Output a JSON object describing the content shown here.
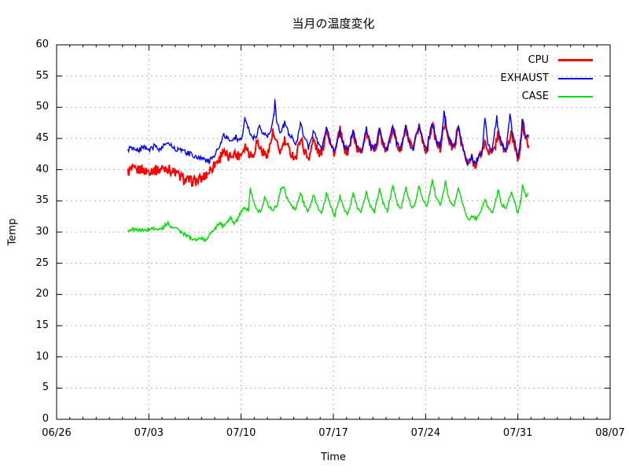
{
  "chart_data": {
    "type": "line",
    "title": "当月の温度変化",
    "xlabel": "Time",
    "ylabel": "Temp",
    "background": "#ffffff",
    "grid": {
      "show": true,
      "color": "#b0b0b0",
      "style": "dotted"
    },
    "legend": {
      "position": "top-right",
      "entries": [
        "CPU",
        "EXHAUST",
        "CASE"
      ]
    },
    "x_axis": {
      "range_days": [
        0,
        42
      ],
      "tick_days": [
        0,
        7,
        14,
        21,
        28,
        35,
        42
      ],
      "tick_labels": [
        "06/26",
        "07/03",
        "07/10",
        "07/17",
        "07/24",
        "07/31",
        "08/07"
      ],
      "minor_tick_step_days": 1
    },
    "y_axis": {
      "range": [
        0,
        60
      ],
      "ticks": [
        0,
        5,
        10,
        15,
        20,
        25,
        30,
        35,
        40,
        45,
        50,
        55,
        60
      ]
    },
    "series": [
      {
        "name": "CPU",
        "color": "#ff0000",
        "noise": 0.85,
        "samples_per_day": 16,
        "points": [
          [
            5.4,
            39.6
          ],
          [
            5.7,
            40.0
          ],
          [
            6.0,
            39.8
          ],
          [
            6.4,
            40.1
          ],
          [
            6.8,
            39.7
          ],
          [
            7.2,
            40.0
          ],
          [
            7.6,
            39.9
          ],
          [
            8.0,
            40.2
          ],
          [
            8.3,
            40.4
          ],
          [
            8.6,
            39.9
          ],
          [
            9.0,
            39.5
          ],
          [
            9.4,
            38.8
          ],
          [
            9.8,
            38.3
          ],
          [
            10.2,
            38.2
          ],
          [
            10.6,
            38.2
          ],
          [
            11.0,
            38.5
          ],
          [
            11.4,
            39.3
          ],
          [
            11.8,
            40.3
          ],
          [
            12.1,
            41.2
          ],
          [
            12.4,
            41.8
          ],
          [
            12.6,
            43.3
          ],
          [
            12.8,
            42.2
          ],
          [
            13.1,
            41.9
          ],
          [
            13.4,
            42.8
          ],
          [
            13.7,
            42.2
          ],
          [
            14.0,
            42.6
          ],
          [
            14.3,
            43.9
          ],
          [
            14.6,
            42.8
          ],
          [
            14.9,
            42.2
          ],
          [
            15.2,
            44.6
          ],
          [
            15.5,
            43.2
          ],
          [
            15.8,
            42.4
          ],
          [
            16.1,
            43.0
          ],
          [
            16.4,
            45.9
          ],
          [
            16.7,
            44.0
          ],
          [
            17.0,
            42.8
          ],
          [
            17.3,
            44.6
          ],
          [
            17.6,
            43.2
          ],
          [
            17.9,
            42.4
          ],
          [
            18.2,
            42.0
          ],
          [
            18.5,
            45.3
          ],
          [
            18.8,
            43.0
          ],
          [
            19.1,
            41.8
          ],
          [
            19.5,
            44.8
          ],
          [
            19.8,
            43.0
          ],
          [
            20.1,
            42.4
          ],
          [
            20.5,
            46.8
          ],
          [
            20.8,
            44.0
          ],
          [
            21.1,
            42.6
          ],
          [
            21.5,
            46.2
          ],
          [
            21.8,
            43.6
          ],
          [
            22.1,
            42.8
          ],
          [
            22.5,
            46.0
          ],
          [
            22.8,
            43.4
          ],
          [
            23.1,
            42.6
          ],
          [
            23.5,
            46.5
          ],
          [
            23.8,
            43.8
          ],
          [
            24.1,
            42.8
          ],
          [
            24.5,
            46.3
          ],
          [
            24.8,
            43.6
          ],
          [
            25.1,
            43.0
          ],
          [
            25.5,
            47.0
          ],
          [
            25.8,
            44.0
          ],
          [
            26.1,
            43.0
          ],
          [
            26.5,
            46.6
          ],
          [
            26.8,
            43.8
          ],
          [
            27.1,
            43.2
          ],
          [
            27.5,
            47.2
          ],
          [
            27.8,
            44.2
          ],
          [
            28.1,
            43.2
          ],
          [
            28.5,
            47.5
          ],
          [
            28.8,
            44.4
          ],
          [
            29.1,
            43.4
          ],
          [
            29.5,
            47.8
          ],
          [
            29.8,
            44.6
          ],
          [
            30.1,
            43.2
          ],
          [
            30.5,
            46.8
          ],
          [
            30.8,
            43.6
          ],
          [
            31.0,
            42.0
          ],
          [
            31.2,
            40.7
          ],
          [
            31.5,
            41.8
          ],
          [
            31.7,
            40.9
          ],
          [
            32.0,
            41.6
          ],
          [
            32.3,
            43.0
          ],
          [
            32.5,
            44.4
          ],
          [
            32.8,
            43.0
          ],
          [
            33.1,
            42.4
          ],
          [
            33.5,
            45.9
          ],
          [
            33.8,
            43.6
          ],
          [
            34.1,
            43.0
          ],
          [
            34.5,
            45.6
          ],
          [
            34.8,
            43.6
          ],
          [
            35.0,
            41.8
          ],
          [
            35.2,
            44.0
          ],
          [
            35.35,
            47.3
          ],
          [
            35.5,
            46.0
          ],
          [
            35.65,
            44.5
          ],
          [
            35.8,
            43.9
          ]
        ]
      },
      {
        "name": "EXHAUST",
        "color": "#0000ff",
        "noise": 0.45,
        "samples_per_day": 16,
        "points": [
          [
            5.4,
            43.2
          ],
          [
            5.8,
            43.5
          ],
          [
            6.2,
            43.1
          ],
          [
            6.6,
            43.6
          ],
          [
            7.0,
            43.3
          ],
          [
            7.4,
            43.7
          ],
          [
            7.8,
            43.2
          ],
          [
            8.2,
            43.9
          ],
          [
            8.5,
            44.2
          ],
          [
            8.8,
            43.6
          ],
          [
            9.2,
            43.2
          ],
          [
            9.6,
            42.9
          ],
          [
            10.0,
            42.6
          ],
          [
            10.4,
            42.3
          ],
          [
            10.8,
            42.0
          ],
          [
            11.2,
            41.5
          ],
          [
            11.6,
            41.3
          ],
          [
            11.9,
            42.0
          ],
          [
            12.2,
            43.2
          ],
          [
            12.5,
            44.6
          ],
          [
            12.7,
            45.6
          ],
          [
            13.0,
            44.8
          ],
          [
            13.3,
            44.4
          ],
          [
            13.6,
            45.2
          ],
          [
            13.9,
            44.7
          ],
          [
            14.1,
            45.3
          ],
          [
            14.3,
            48.2
          ],
          [
            14.5,
            46.6
          ],
          [
            14.8,
            45.4
          ],
          [
            15.1,
            45.0
          ],
          [
            15.4,
            46.9
          ],
          [
            15.7,
            45.6
          ],
          [
            16.0,
            45.2
          ],
          [
            16.3,
            46.4
          ],
          [
            16.5,
            48.8
          ],
          [
            16.57,
            51.3
          ],
          [
            16.7,
            48.0
          ],
          [
            17.0,
            45.8
          ],
          [
            17.3,
            47.4
          ],
          [
            17.6,
            45.9
          ],
          [
            17.9,
            44.9
          ],
          [
            18.2,
            44.3
          ],
          [
            18.5,
            47.6
          ],
          [
            18.8,
            45.2
          ],
          [
            19.1,
            43.6
          ],
          [
            19.5,
            46.4
          ],
          [
            19.8,
            44.4
          ],
          [
            20.1,
            43.2
          ],
          [
            20.5,
            47.0
          ],
          [
            20.8,
            44.2
          ],
          [
            21.1,
            42.8
          ],
          [
            21.5,
            46.3
          ],
          [
            21.8,
            43.8
          ],
          [
            22.1,
            43.0
          ],
          [
            22.5,
            46.2
          ],
          [
            22.8,
            43.6
          ],
          [
            23.1,
            42.8
          ],
          [
            23.5,
            46.7
          ],
          [
            23.8,
            44.0
          ],
          [
            24.1,
            43.0
          ],
          [
            24.5,
            46.5
          ],
          [
            24.8,
            43.8
          ],
          [
            25.1,
            43.2
          ],
          [
            25.5,
            47.2
          ],
          [
            25.8,
            44.2
          ],
          [
            26.1,
            43.2
          ],
          [
            26.5,
            46.8
          ],
          [
            26.8,
            44.0
          ],
          [
            27.1,
            43.4
          ],
          [
            27.5,
            47.4
          ],
          [
            27.8,
            44.4
          ],
          [
            28.1,
            43.4
          ],
          [
            28.5,
            47.7
          ],
          [
            28.8,
            44.6
          ],
          [
            29.1,
            43.6
          ],
          [
            29.4,
            49.3
          ],
          [
            29.6,
            46.4
          ],
          [
            29.8,
            44.8
          ],
          [
            30.1,
            43.4
          ],
          [
            30.5,
            47.0
          ],
          [
            30.8,
            43.8
          ],
          [
            31.0,
            42.2
          ],
          [
            31.2,
            40.9
          ],
          [
            31.5,
            42.0
          ],
          [
            31.7,
            41.1
          ],
          [
            32.0,
            41.8
          ],
          [
            32.3,
            43.2
          ],
          [
            32.5,
            48.5
          ],
          [
            32.7,
            44.4
          ],
          [
            33.0,
            42.8
          ],
          [
            33.4,
            48.3
          ],
          [
            33.6,
            45.4
          ],
          [
            33.8,
            43.8
          ],
          [
            34.1,
            43.2
          ],
          [
            34.4,
            48.6
          ],
          [
            34.6,
            45.6
          ],
          [
            34.8,
            44.2
          ],
          [
            35.0,
            42.2
          ],
          [
            35.2,
            44.6
          ],
          [
            35.35,
            48.0
          ],
          [
            35.5,
            46.4
          ],
          [
            35.65,
            45.2
          ],
          [
            35.8,
            45.6
          ]
        ]
      },
      {
        "name": "CASE",
        "color": "#00dd00",
        "noise": 0.3,
        "samples_per_day": 16,
        "points": [
          [
            5.4,
            30.3
          ],
          [
            5.8,
            30.5
          ],
          [
            6.2,
            30.2
          ],
          [
            6.6,
            30.4
          ],
          [
            7.0,
            30.3
          ],
          [
            7.4,
            30.6
          ],
          [
            7.8,
            30.3
          ],
          [
            8.1,
            30.8
          ],
          [
            8.4,
            31.5
          ],
          [
            8.7,
            30.9
          ],
          [
            9.0,
            30.7
          ],
          [
            9.4,
            30.1
          ],
          [
            9.8,
            29.5
          ],
          [
            10.2,
            29.0
          ],
          [
            10.6,
            28.7
          ],
          [
            11.0,
            29.1
          ],
          [
            11.3,
            28.7
          ],
          [
            11.6,
            29.6
          ],
          [
            11.9,
            30.4
          ],
          [
            12.2,
            31.0
          ],
          [
            12.4,
            31.6
          ],
          [
            12.6,
            30.9
          ],
          [
            12.9,
            31.4
          ],
          [
            13.2,
            32.4
          ],
          [
            13.4,
            31.4
          ],
          [
            13.7,
            31.9
          ],
          [
            14.0,
            33.2
          ],
          [
            14.3,
            34.0
          ],
          [
            14.55,
            33.4
          ],
          [
            14.7,
            37.0
          ],
          [
            14.9,
            35.2
          ],
          [
            15.2,
            33.6
          ],
          [
            15.5,
            33.2
          ],
          [
            15.8,
            35.6
          ],
          [
            16.1,
            34.2
          ],
          [
            16.4,
            33.6
          ],
          [
            16.7,
            34.1
          ],
          [
            17.0,
            36.9
          ],
          [
            17.2,
            37.4
          ],
          [
            17.5,
            35.4
          ],
          [
            17.8,
            34.2
          ],
          [
            18.1,
            33.6
          ],
          [
            18.5,
            36.2
          ],
          [
            18.8,
            34.4
          ],
          [
            19.1,
            33.2
          ],
          [
            19.5,
            36.0
          ],
          [
            19.8,
            34.0
          ],
          [
            20.1,
            32.8
          ],
          [
            20.5,
            36.4
          ],
          [
            20.8,
            34.2
          ],
          [
            21.1,
            32.6
          ],
          [
            21.5,
            35.8
          ],
          [
            21.8,
            33.8
          ],
          [
            22.1,
            32.9
          ],
          [
            22.5,
            36.1
          ],
          [
            22.8,
            34.0
          ],
          [
            23.1,
            33.0
          ],
          [
            23.5,
            36.6
          ],
          [
            23.8,
            34.2
          ],
          [
            24.1,
            33.2
          ],
          [
            24.5,
            36.8
          ],
          [
            24.8,
            34.4
          ],
          [
            25.1,
            33.4
          ],
          [
            25.5,
            37.4
          ],
          [
            25.8,
            34.8
          ],
          [
            26.1,
            33.6
          ],
          [
            26.5,
            37.0
          ],
          [
            26.8,
            34.6
          ],
          [
            27.1,
            33.8
          ],
          [
            27.5,
            37.6
          ],
          [
            27.8,
            35.0
          ],
          [
            28.1,
            34.0
          ],
          [
            28.5,
            38.3
          ],
          [
            28.8,
            35.4
          ],
          [
            29.1,
            34.2
          ],
          [
            29.5,
            38.0
          ],
          [
            29.8,
            35.2
          ],
          [
            30.1,
            34.0
          ],
          [
            30.5,
            37.2
          ],
          [
            30.8,
            34.4
          ],
          [
            31.0,
            33.2
          ],
          [
            31.3,
            31.8
          ],
          [
            31.6,
            32.6
          ],
          [
            31.9,
            32.0
          ],
          [
            32.2,
            33.4
          ],
          [
            32.5,
            35.2
          ],
          [
            32.8,
            33.8
          ],
          [
            33.1,
            33.2
          ],
          [
            33.5,
            36.6
          ],
          [
            33.8,
            34.4
          ],
          [
            34.1,
            33.8
          ],
          [
            34.5,
            36.4
          ],
          [
            34.8,
            34.6
          ],
          [
            35.0,
            33.0
          ],
          [
            35.2,
            34.6
          ],
          [
            35.35,
            37.7
          ],
          [
            35.5,
            36.4
          ],
          [
            35.65,
            35.6
          ],
          [
            35.8,
            36.2
          ]
        ]
      }
    ]
  }
}
